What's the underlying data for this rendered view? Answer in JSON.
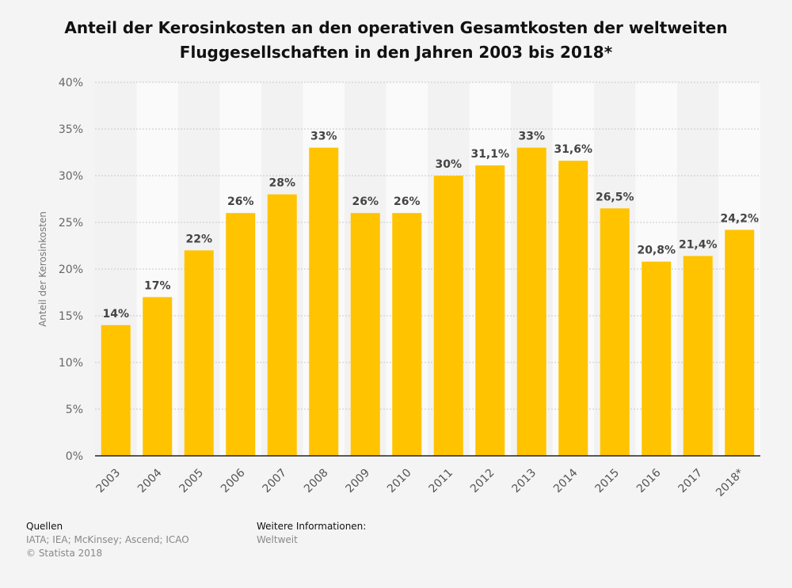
{
  "chart_data": {
    "type": "bar",
    "title": "Anteil der Kerosinkosten an den operativen Gesamtkosten der weltweiten Fluggesellschaften in den Jahren 2003 bis 2018*",
    "xlabel": "",
    "ylabel": "Anteil der Kerosinkosten",
    "ylim": [
      0,
      40
    ],
    "yticks": [
      "0%",
      "5%",
      "10%",
      "15%",
      "20%",
      "25%",
      "30%",
      "35%",
      "40%"
    ],
    "grid": true,
    "categories": [
      "2003",
      "2004",
      "2005",
      "2006",
      "2007",
      "2008",
      "2009",
      "2010",
      "2011",
      "2012",
      "2013",
      "2014",
      "2015",
      "2016",
      "2017",
      "2018*"
    ],
    "values": [
      14,
      17,
      22,
      26,
      28,
      33,
      26,
      26,
      30,
      31.1,
      33,
      31.6,
      26.5,
      20.8,
      21.4,
      24.2
    ],
    "data_labels": [
      "14%",
      "17%",
      "22%",
      "26%",
      "28%",
      "33%",
      "26%",
      "26%",
      "30%",
      "31,1%",
      "33%",
      "31,6%",
      "26,5%",
      "20,8%",
      "21,4%",
      "24,2%"
    ],
    "bar_color": "#ffc300"
  },
  "footer": {
    "sources_heading": "Quellen",
    "sources": "IATA; IEA; McKinsey; Ascend; ICAO",
    "copyright": "© Statista 2018",
    "info_heading": "Weitere Informationen:",
    "info": "Weltweit"
  }
}
